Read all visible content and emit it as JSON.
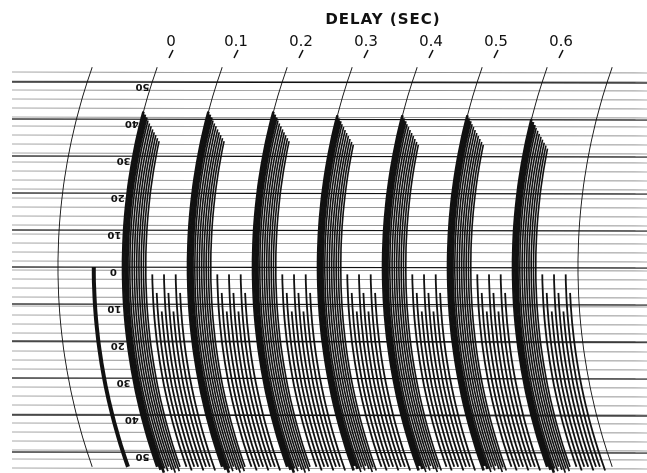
{
  "chart_data": {
    "type": "line",
    "title": "DELAY (SEC)",
    "x_tick_labels": [
      "0",
      "0.1",
      "0.2",
      "0.3",
      "0.4",
      "0.5",
      "0.6"
    ],
    "x_ticks": [
      0,
      0.1,
      0.2,
      0.3,
      0.4,
      0.5,
      0.6
    ],
    "xlim": [
      -0.1,
      0.7
    ],
    "y_tick_labels": [
      "50",
      "40",
      "30",
      "20",
      "10",
      "0",
      "10",
      "20",
      "30",
      "40",
      "50"
    ],
    "y_ticks": [
      50,
      40,
      30,
      20,
      10,
      0,
      -10,
      -20,
      -30,
      -40,
      -50
    ],
    "ylim": [
      -56,
      58
    ],
    "grid": true,
    "series": [
      {
        "x_start": 0.0,
        "peak": 42
      },
      {
        "x_start": 0.1,
        "peak": 42
      },
      {
        "x_start": 0.2,
        "peak": 42
      },
      {
        "x_start": 0.3,
        "peak": 41
      },
      {
        "x_start": 0.4,
        "peak": 41
      },
      {
        "x_start": 0.5,
        "peak": 41
      },
      {
        "x_start": 0.6,
        "peak": 40
      }
    ]
  },
  "colors": {
    "ink": "#111111",
    "grid": "#555555",
    "paper": "#ffffff"
  }
}
